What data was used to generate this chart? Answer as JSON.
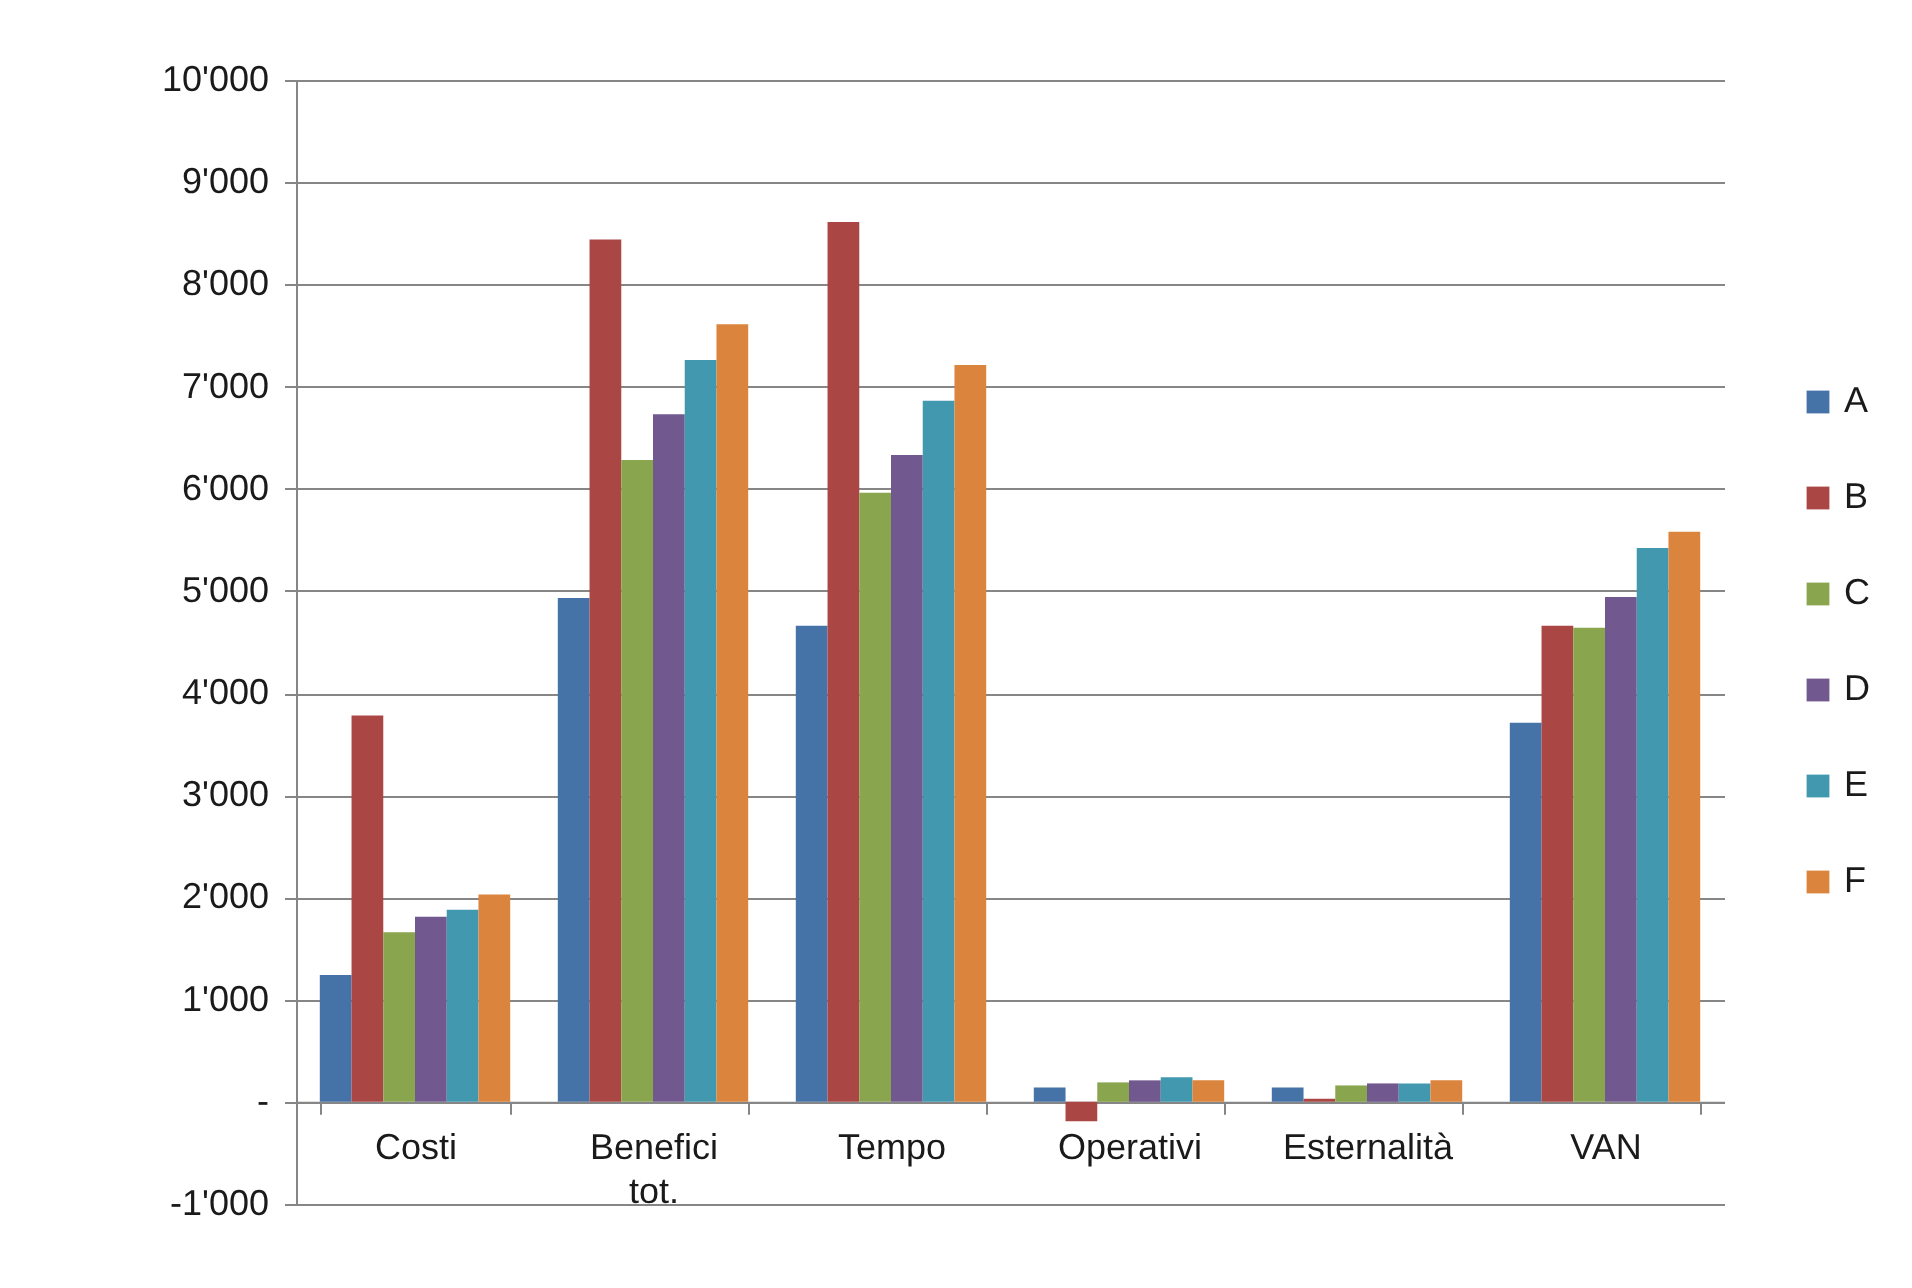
{
  "chart_data": {
    "type": "bar",
    "categories": [
      "Costi",
      "Benefici tot.",
      "Tempo",
      "Operativi",
      "Esternalità",
      "VAN"
    ],
    "series": [
      {
        "name": "A",
        "color": "#4572a7",
        "values": [
          1240,
          4930,
          4660,
          140,
          140,
          3710
        ]
      },
      {
        "name": "B",
        "color": "#aa4643",
        "values": [
          3780,
          8440,
          8610,
          -190,
          30,
          4660
        ]
      },
      {
        "name": "C",
        "color": "#89a54e",
        "values": [
          1660,
          6280,
          5960,
          190,
          160,
          4640
        ]
      },
      {
        "name": "D",
        "color": "#71588f",
        "values": [
          1810,
          6730,
          6330,
          210,
          180,
          4940
        ]
      },
      {
        "name": "E",
        "color": "#4198af",
        "values": [
          1880,
          7260,
          6860,
          240,
          180,
          5420
        ]
      },
      {
        "name": "F",
        "color": "#db843d",
        "values": [
          2030,
          7610,
          7210,
          210,
          210,
          5580
        ]
      }
    ],
    "ylim": [
      -1000,
      10000
    ],
    "yticks": [
      {
        "value": -1000,
        "label": "-1'000"
      },
      {
        "value": 0,
        "label": "-"
      },
      {
        "value": 1000,
        "label": "1'000"
      },
      {
        "value": 2000,
        "label": "2'000"
      },
      {
        "value": 3000,
        "label": "3'000"
      },
      {
        "value": 4000,
        "label": "4'000"
      },
      {
        "value": 5000,
        "label": "5'000"
      },
      {
        "value": 6000,
        "label": "6'000"
      },
      {
        "value": 7000,
        "label": "7'000"
      },
      {
        "value": 8000,
        "label": "8'000"
      },
      {
        "value": 9000,
        "label": "9'000"
      },
      {
        "value": 10000,
        "label": "10'000"
      }
    ],
    "grid": "y",
    "legend": "right"
  }
}
